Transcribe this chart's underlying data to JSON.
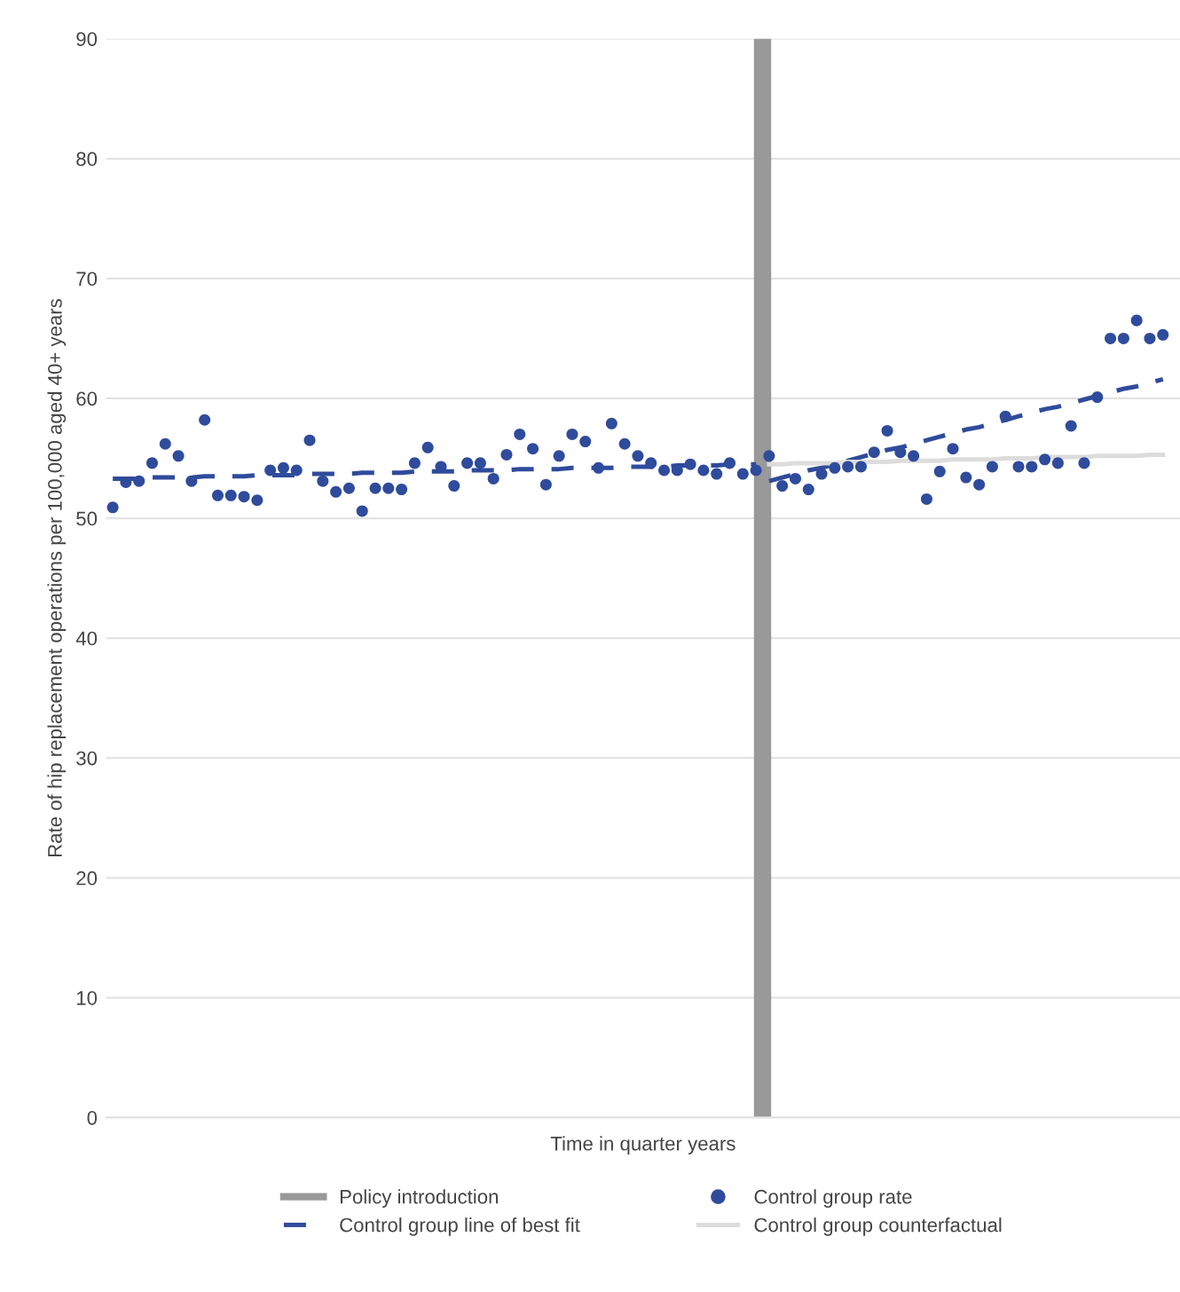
{
  "chart_data": {
    "type": "scatter",
    "ylabel": "Rate of hip replacement operations per 100,000 aged 40+ years",
    "xlabel": "Time in quarter years",
    "categories": [
      null,
      null,
      null,
      null,
      null,
      null,
      null,
      null,
      null,
      null,
      null,
      null,
      null,
      null,
      null,
      null,
      null,
      null,
      null,
      null,
      null,
      null,
      null,
      null,
      null,
      null,
      null,
      null,
      null,
      null,
      null,
      null,
      null,
      null,
      null,
      null,
      null,
      null,
      null,
      null,
      null,
      null,
      null,
      null,
      null,
      null,
      null,
      null,
      null,
      null,
      null,
      null,
      null,
      null,
      null,
      null,
      null,
      null,
      null,
      null,
      null,
      null,
      null,
      null,
      null,
      null,
      null,
      null,
      null,
      null,
      null,
      null,
      null,
      null,
      null,
      null,
      null,
      null,
      null,
      null,
      null
    ],
    "marker": "circle",
    "series": [
      {
        "name": "Control group rate",
        "color": "#2f4b9c",
        "values": [
          50.9,
          53.0,
          53.1,
          54.6,
          56.2,
          55.2,
          53.1,
          58.2,
          51.9,
          51.9,
          51.8,
          51.5,
          54.0,
          54.2,
          54.0,
          56.5,
          53.1,
          52.2,
          52.5,
          50.6,
          52.5,
          52.5,
          52.4,
          54.6,
          55.9,
          54.3,
          52.7,
          54.6,
          54.6,
          53.3,
          55.3,
          57.0,
          55.8,
          52.8,
          55.2,
          57.0,
          56.4,
          54.2,
          57.9,
          56.2,
          55.2,
          54.6,
          54.0,
          54.0,
          54.5,
          54.0,
          53.7,
          54.6,
          53.7,
          54.0,
          55.2,
          52.7,
          53.3,
          52.4,
          53.7,
          54.2,
          54.3,
          54.3,
          55.5,
          57.3,
          55.5,
          55.2,
          51.6,
          53.9,
          55.8,
          53.4,
          52.8,
          54.3,
          58.5,
          54.3,
          54.3,
          54.9,
          54.6,
          57.7,
          54.6,
          60.1,
          65.0,
          65.0,
          66.5,
          65.0,
          65.3
        ]
      },
      {
        "name": "Control group line of best fit",
        "type": "line",
        "color": "#2f4b9c",
        "line_style": "dashed",
        "marker": "none",
        "values": [
          53.3,
          53.3,
          53.3,
          53.4,
          53.4,
          53.4,
          53.4,
          53.5,
          53.5,
          53.5,
          53.5,
          53.6,
          53.6,
          53.6,
          53.6,
          53.7,
          53.7,
          53.7,
          53.7,
          53.8,
          53.8,
          53.8,
          53.8,
          53.9,
          53.9,
          53.9,
          53.9,
          54.0,
          54.0,
          54.0,
          54.0,
          54.1,
          54.1,
          54.1,
          54.1,
          54.2,
          54.2,
          54.2,
          54.2,
          54.3,
          54.3,
          54.3,
          54.3,
          54.4,
          54.4,
          54.4,
          54.4,
          54.5,
          54.5,
          54.5,
          null,
          null,
          null,
          null,
          null,
          null,
          null,
          null,
          null,
          null,
          null,
          null,
          null,
          null,
          null,
          null,
          null,
          null,
          null,
          null,
          null,
          null,
          null,
          null,
          null,
          null,
          null,
          null,
          null,
          null,
          null
        ]
      },
      {
        "type": "line",
        "color": "#2f4b9c",
        "line_style": "dashed",
        "marker": "none",
        "values": [
          null,
          null,
          null,
          null,
          null,
          null,
          null,
          null,
          null,
          null,
          null,
          null,
          null,
          null,
          null,
          null,
          null,
          null,
          null,
          null,
          null,
          null,
          null,
          null,
          null,
          null,
          null,
          null,
          null,
          null,
          null,
          null,
          null,
          null,
          null,
          null,
          null,
          null,
          null,
          null,
          null,
          null,
          null,
          null,
          null,
          null,
          null,
          null,
          null,
          null,
          53.1,
          53.4,
          53.7,
          54.0,
          54.2,
          54.5,
          54.8,
          55.1,
          55.4,
          55.7,
          55.9,
          56.2,
          56.5,
          56.8,
          57.1,
          57.4,
          57.6,
          57.9,
          58.2,
          58.5,
          58.8,
          59.1,
          59.3,
          59.6,
          59.9,
          60.2,
          60.5,
          60.8,
          61.0,
          61.3,
          61.6
        ]
      },
      {
        "name": "Control group counterfactual",
        "type": "line",
        "color": "#dcdcdc",
        "line_style": "solid",
        "marker": "none",
        "values": [
          null,
          null,
          null,
          null,
          null,
          null,
          null,
          null,
          null,
          null,
          null,
          null,
          null,
          null,
          null,
          null,
          null,
          null,
          null,
          null,
          null,
          null,
          null,
          null,
          null,
          null,
          null,
          null,
          null,
          null,
          null,
          null,
          null,
          null,
          null,
          null,
          null,
          null,
          null,
          null,
          null,
          null,
          null,
          null,
          null,
          null,
          null,
          null,
          null,
          null,
          54.5,
          54.5,
          54.6,
          54.6,
          54.6,
          54.6,
          54.7,
          54.7,
          54.7,
          54.7,
          54.8,
          54.8,
          54.8,
          54.8,
          54.9,
          54.9,
          54.9,
          54.9,
          55.0,
          55.0,
          55.0,
          55.1,
          55.1,
          55.1,
          55.1,
          55.2,
          55.2,
          55.2,
          55.2,
          55.3,
          55.3
        ]
      }
    ],
    "ref_lines": [
      {
        "axis": "x",
        "label": "Policy introduction",
        "color": "#999999"
      }
    ],
    "ylim": [
      0,
      90
    ],
    "yticks": [
      0,
      10,
      20,
      30,
      40,
      50,
      60,
      70,
      80,
      90
    ],
    "grid": "y",
    "legend": "bottom"
  }
}
